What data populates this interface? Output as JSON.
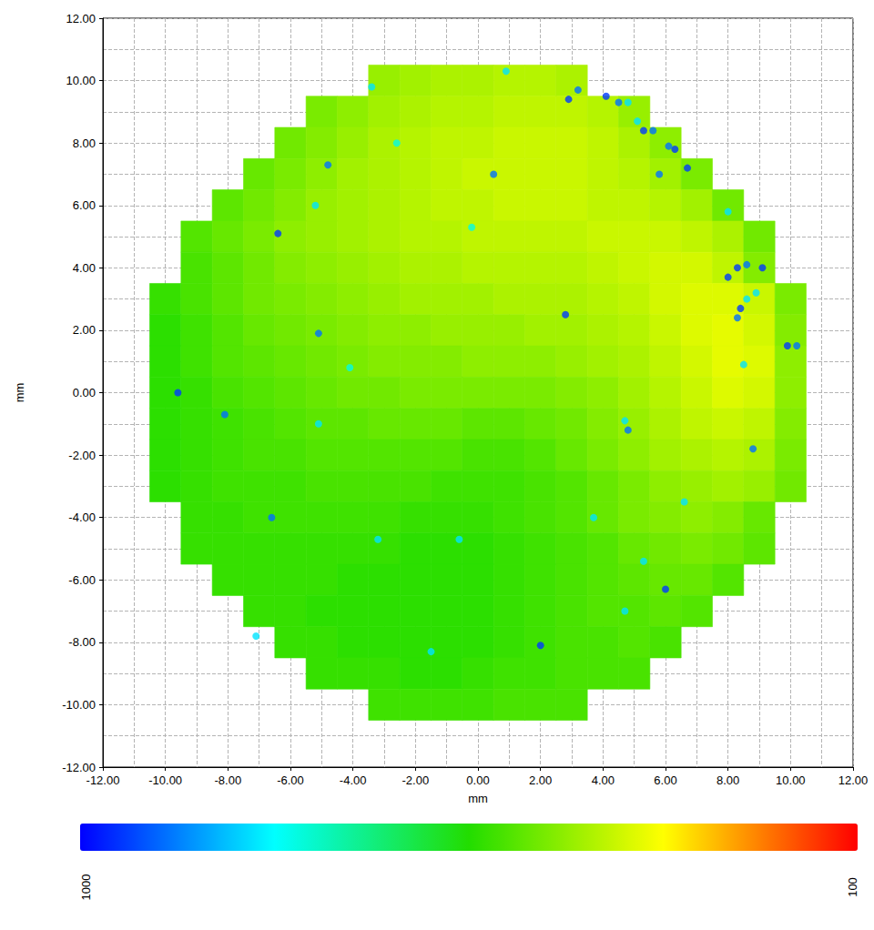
{
  "chart_data": {
    "type": "heatmap",
    "x_label": "mm",
    "y_label": "mm",
    "xlim": [
      -12,
      12
    ],
    "ylim": [
      -12,
      12
    ],
    "xticks": [
      {
        "value": -12,
        "label": "-12.00"
      },
      {
        "value": -10,
        "label": "-10.00"
      },
      {
        "value": -8,
        "label": "-8.00"
      },
      {
        "value": -6,
        "label": "-6.00"
      },
      {
        "value": -4,
        "label": "-4.00"
      },
      {
        "value": -2,
        "label": "-2.00"
      },
      {
        "value": 0,
        "label": "0.00"
      },
      {
        "value": 2,
        "label": "2.00"
      },
      {
        "value": 4,
        "label": "4.00"
      },
      {
        "value": 6,
        "label": "6.00"
      },
      {
        "value": 8,
        "label": "8.00"
      },
      {
        "value": 10,
        "label": "10.00"
      },
      {
        "value": 12,
        "label": "12.00"
      }
    ],
    "yticks": [
      {
        "value": -12,
        "label": "-12.00"
      },
      {
        "value": -10,
        "label": "-10.00"
      },
      {
        "value": -8,
        "label": "-8.00"
      },
      {
        "value": -6,
        "label": "-6.00"
      },
      {
        "value": -4,
        "label": "-4.00"
      },
      {
        "value": -2,
        "label": "-2.00"
      },
      {
        "value": 0,
        "label": "0.00"
      },
      {
        "value": 2,
        "label": "2.00"
      },
      {
        "value": 4,
        "label": "4.00"
      },
      {
        "value": 6,
        "label": "6.00"
      },
      {
        "value": 8,
        "label": "8.00"
      },
      {
        "value": 10,
        "label": "10.00"
      },
      {
        "value": 12,
        "label": "12.00"
      }
    ],
    "grid": true,
    "cells": {
      "x": [
        -10,
        -9,
        -8,
        -7,
        -6,
        -5,
        -4,
        -3,
        -2,
        -1,
        0,
        1,
        2,
        3,
        4,
        5,
        6,
        7,
        8,
        9,
        10
      ],
      "y": [
        10,
        9,
        8,
        7,
        6,
        5,
        4,
        3,
        2,
        1,
        0,
        -1,
        -2,
        -3,
        -4,
        -5,
        -6,
        -7,
        -8,
        -9,
        -10
      ],
      "values": [
        [
          null,
          null,
          null,
          null,
          null,
          null,
          null,
          430,
          420,
          410,
          410,
          400,
          400,
          410,
          null,
          null,
          null,
          null,
          null,
          null,
          null
        ],
        [
          null,
          null,
          null,
          null,
          null,
          460,
          440,
          420,
          410,
          400,
          400,
          390,
          390,
          390,
          400,
          430,
          null,
          null,
          null,
          null,
          null
        ],
        [
          null,
          null,
          null,
          null,
          470,
          450,
          430,
          410,
          400,
          390,
          390,
          380,
          380,
          380,
          390,
          410,
          440,
          null,
          null,
          null,
          null
        ],
        [
          null,
          null,
          null,
          480,
          460,
          440,
          420,
          410,
          400,
          390,
          380,
          380,
          380,
          380,
          390,
          400,
          420,
          460,
          null,
          null,
          null
        ],
        [
          null,
          null,
          490,
          470,
          450,
          430,
          420,
          410,
          400,
          390,
          390,
          380,
          380,
          380,
          390,
          390,
          400,
          420,
          470,
          null,
          null
        ],
        [
          null,
          500,
          480,
          460,
          440,
          430,
          420,
          410,
          400,
          400,
          390,
          390,
          390,
          390,
          380,
          380,
          380,
          390,
          410,
          470,
          null
        ],
        [
          null,
          510,
          490,
          470,
          450,
          440,
          430,
          420,
          410,
          410,
          400,
          400,
          400,
          400,
          390,
          380,
          370,
          370,
          390,
          450,
          null
        ],
        [
          530,
          510,
          490,
          470,
          460,
          450,
          440,
          430,
          420,
          420,
          420,
          410,
          410,
          410,
          400,
          390,
          370,
          360,
          360,
          380,
          460
        ],
        [
          540,
          520,
          500,
          480,
          470,
          460,
          450,
          440,
          440,
          430,
          430,
          430,
          420,
          420,
          410,
          400,
          380,
          360,
          350,
          370,
          450
        ],
        [
          540,
          520,
          500,
          490,
          480,
          470,
          460,
          450,
          450,
          450,
          440,
          440,
          440,
          430,
          420,
          410,
          390,
          370,
          350,
          360,
          440
        ],
        [
          540,
          530,
          510,
          500,
          490,
          480,
          470,
          470,
          460,
          460,
          460,
          460,
          460,
          450,
          440,
          420,
          400,
          380,
          360,
          370,
          440
        ],
        [
          540,
          530,
          520,
          510,
          500,
          490,
          490,
          480,
          480,
          480,
          490,
          490,
          480,
          470,
          450,
          430,
          410,
          390,
          380,
          390,
          450
        ],
        [
          540,
          530,
          520,
          510,
          510,
          500,
          500,
          500,
          500,
          500,
          510,
          510,
          500,
          480,
          460,
          440,
          420,
          410,
          400,
          410,
          460
        ],
        [
          540,
          530,
          520,
          520,
          520,
          510,
          510,
          510,
          510,
          520,
          520,
          520,
          510,
          500,
          480,
          460,
          440,
          430,
          420,
          430,
          470
        ],
        [
          null,
          530,
          530,
          520,
          520,
          520,
          520,
          520,
          530,
          530,
          530,
          520,
          510,
          500,
          480,
          460,
          450,
          440,
          450,
          480,
          null
        ],
        [
          null,
          530,
          530,
          530,
          530,
          530,
          530,
          530,
          540,
          540,
          540,
          530,
          520,
          510,
          500,
          480,
          470,
          460,
          470,
          490,
          null
        ],
        [
          null,
          null,
          530,
          530,
          530,
          530,
          540,
          540,
          540,
          540,
          540,
          530,
          520,
          510,
          500,
          490,
          480,
          480,
          500,
          null,
          null
        ],
        [
          null,
          null,
          null,
          530,
          530,
          540,
          540,
          540,
          540,
          540,
          540,
          530,
          520,
          510,
          500,
          500,
          490,
          500,
          null,
          null,
          null
        ],
        [
          null,
          null,
          null,
          null,
          530,
          530,
          540,
          540,
          540,
          540,
          540,
          530,
          520,
          510,
          510,
          500,
          510,
          null,
          null,
          null,
          null
        ],
        [
          null,
          null,
          null,
          null,
          null,
          530,
          530,
          530,
          540,
          540,
          530,
          520,
          520,
          510,
          510,
          510,
          null,
          null,
          null,
          null,
          null
        ],
        [
          null,
          null,
          null,
          null,
          null,
          null,
          null,
          520,
          520,
          520,
          520,
          510,
          510,
          510,
          null,
          null,
          null,
          null,
          null,
          null,
          null
        ]
      ]
    },
    "spots": {
      "x": [
        2.9,
        3.2,
        4.1,
        4.5,
        4.8,
        5.3,
        5.6,
        5.1,
        6.3,
        6.1,
        6.7,
        5.8,
        8.0,
        8.3,
        8.0,
        8.6,
        9.1,
        8.4,
        8.3,
        8.6,
        9.9,
        10.2,
        8.8,
        8.5,
        2.8,
        4.8,
        4.7,
        6.0,
        2.0,
        5.3,
        -6.4,
        -4.8,
        0.5,
        -5.1,
        -9.6,
        -8.1,
        -6.6,
        -5.1,
        -3.2,
        -0.6,
        -5.2,
        -3.4,
        4.7,
        3.7,
        0.9,
        -1.5,
        -7.1,
        -2.6,
        -0.2,
        -4.1,
        6.6,
        8.9
      ],
      "y": [
        9.4,
        9.7,
        9.5,
        9.3,
        9.3,
        8.4,
        8.4,
        8.7,
        7.8,
        7.9,
        7.2,
        7.0,
        5.8,
        4.0,
        3.7,
        4.1,
        4.0,
        2.7,
        2.4,
        3.0,
        1.5,
        1.5,
        -1.8,
        0.9,
        2.5,
        -1.2,
        -0.9,
        -6.3,
        -8.1,
        -5.4,
        5.1,
        7.3,
        7.0,
        1.9,
        0.0,
        -0.7,
        -4.0,
        -1.0,
        -4.7,
        -4.7,
        6.0,
        9.8,
        -7.0,
        -4.0,
        10.3,
        -8.3,
        -7.8,
        8.0,
        5.3,
        0.8,
        -3.5,
        3.2
      ],
      "values": [
        950,
        900,
        950,
        900,
        800,
        950,
        900,
        800,
        950,
        900,
        950,
        900,
        800,
        950,
        950,
        900,
        950,
        950,
        900,
        800,
        950,
        900,
        900,
        800,
        950,
        900,
        800,
        950,
        950,
        800,
        950,
        900,
        900,
        900,
        950,
        900,
        900,
        800,
        800,
        800,
        800,
        800,
        800,
        800,
        800,
        800,
        800,
        750,
        750,
        750,
        800,
        800
      ]
    },
    "colorbar": {
      "range": [
        1000,
        100
      ],
      "ticks": [
        1000,
        100
      ]
    }
  }
}
